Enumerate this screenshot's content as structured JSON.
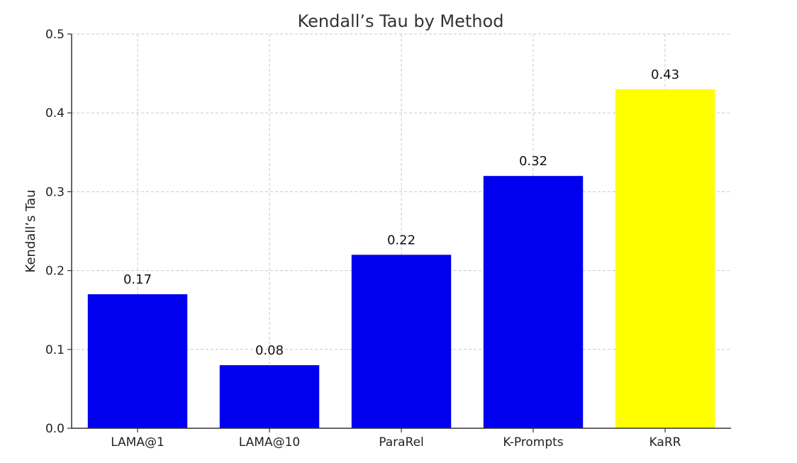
{
  "chart_data": {
    "type": "bar",
    "title": "Kendall’s Tau by Method",
    "xlabel": "",
    "ylabel": "Kendall’s Tau",
    "categories": [
      "LAMA@1",
      "LAMA@10",
      "ParaRel",
      "K-Prompts",
      "KaRR"
    ],
    "values": [
      0.17,
      0.08,
      0.22,
      0.32,
      0.43
    ],
    "value_labels": [
      "0.17",
      "0.08",
      "0.22",
      "0.32",
      "0.43"
    ],
    "colors": [
      "#0000ee",
      "#0000ee",
      "#0000ee",
      "#0000ee",
      "#ffff00"
    ],
    "ylim": [
      0,
      0.5
    ],
    "yticks": [
      0.0,
      0.1,
      0.2,
      0.3,
      0.4,
      0.5
    ],
    "ytick_labels": [
      "0.0",
      "0.1",
      "0.2",
      "0.3",
      "0.4",
      "0.5"
    ],
    "grid": true,
    "legend": "none"
  }
}
